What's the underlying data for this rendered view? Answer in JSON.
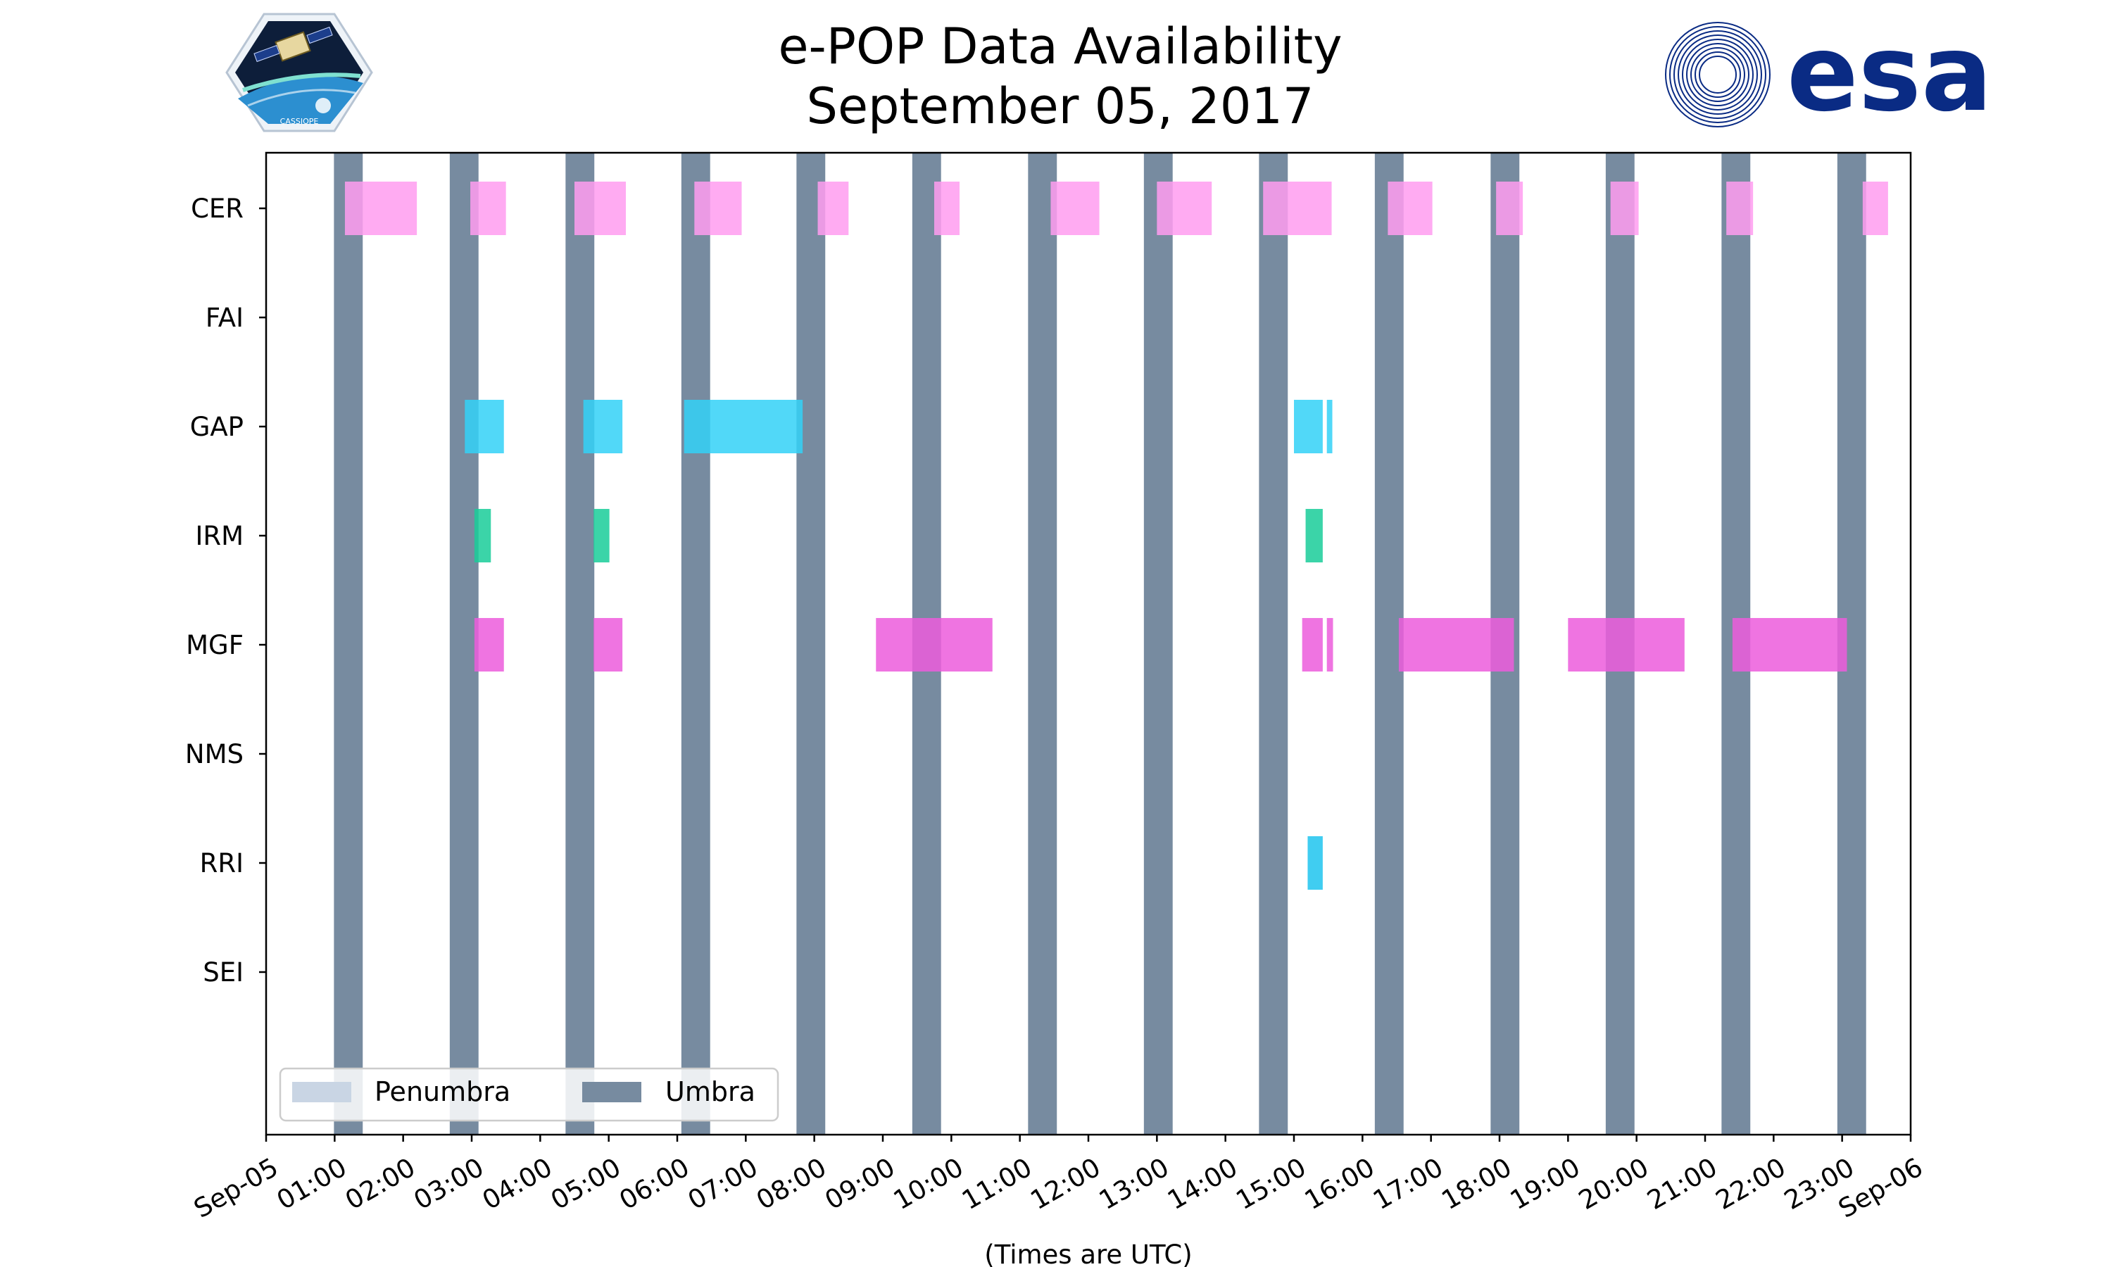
{
  "chart_data": {
    "type": "timeline",
    "title": [
      "e-POP Data Availability",
      "September 05, 2017"
    ],
    "xlabel": "(Times are UTC)",
    "x_range_hours": [
      0,
      24
    ],
    "x_ticks": [
      {
        "hour": 0,
        "label": "Sep-05"
      },
      {
        "hour": 1,
        "label": "01:00"
      },
      {
        "hour": 2,
        "label": "02:00"
      },
      {
        "hour": 3,
        "label": "03:00"
      },
      {
        "hour": 4,
        "label": "04:00"
      },
      {
        "hour": 5,
        "label": "05:00"
      },
      {
        "hour": 6,
        "label": "06:00"
      },
      {
        "hour": 7,
        "label": "07:00"
      },
      {
        "hour": 8,
        "label": "08:00"
      },
      {
        "hour": 9,
        "label": "09:00"
      },
      {
        "hour": 10,
        "label": "10:00"
      },
      {
        "hour": 11,
        "label": "11:00"
      },
      {
        "hour": 12,
        "label": "12:00"
      },
      {
        "hour": 13,
        "label": "13:00"
      },
      {
        "hour": 14,
        "label": "14:00"
      },
      {
        "hour": 15,
        "label": "15:00"
      },
      {
        "hour": 16,
        "label": "16:00"
      },
      {
        "hour": 17,
        "label": "17:00"
      },
      {
        "hour": 18,
        "label": "18:00"
      },
      {
        "hour": 19,
        "label": "19:00"
      },
      {
        "hour": 20,
        "label": "20:00"
      },
      {
        "hour": 21,
        "label": "21:00"
      },
      {
        "hour": 22,
        "label": "22:00"
      },
      {
        "hour": 23,
        "label": "23:00"
      },
      {
        "hour": 24,
        "label": "Sep-06"
      }
    ],
    "instruments": [
      "CER",
      "FAI",
      "GAP",
      "IRM",
      "MGF",
      "NMS",
      "RRI",
      "SEI"
    ],
    "umbra_intervals": [
      [
        0.99,
        1.41
      ],
      [
        2.68,
        3.1
      ],
      [
        4.37,
        4.79
      ],
      [
        6.06,
        6.48
      ],
      [
        7.74,
        8.16
      ],
      [
        9.43,
        9.85
      ],
      [
        11.12,
        11.54
      ],
      [
        12.81,
        13.23
      ],
      [
        14.49,
        14.91
      ],
      [
        16.18,
        16.6
      ],
      [
        17.87,
        18.29
      ],
      [
        19.55,
        19.97
      ],
      [
        21.24,
        21.66
      ],
      [
        22.93,
        23.35
      ]
    ],
    "series": [
      {
        "name": "CER",
        "color": "#ff9cf0",
        "intervals": [
          [
            1.15,
            2.2
          ],
          [
            2.98,
            3.5
          ],
          [
            4.5,
            5.25
          ],
          [
            6.25,
            6.94
          ],
          [
            8.05,
            8.5
          ],
          [
            9.75,
            10.12
          ],
          [
            11.45,
            12.16
          ],
          [
            13.0,
            13.8
          ],
          [
            14.55,
            15.55
          ],
          [
            16.37,
            17.02
          ],
          [
            17.95,
            18.34
          ],
          [
            19.62,
            20.03
          ],
          [
            21.31,
            21.7
          ],
          [
            23.3,
            23.67
          ]
        ]
      },
      {
        "name": "FAI",
        "color": "#ff9cf0",
        "intervals": []
      },
      {
        "name": "GAP",
        "color": "#33d1f7",
        "intervals": [
          [
            2.9,
            3.47
          ],
          [
            4.63,
            5.2
          ],
          [
            6.1,
            7.83
          ],
          [
            15.0,
            15.42
          ],
          [
            15.48,
            15.56
          ]
        ]
      },
      {
        "name": "IRM",
        "color": "#19cc99",
        "intervals": [
          [
            3.04,
            3.28
          ],
          [
            4.78,
            5.01
          ],
          [
            15.17,
            15.42
          ]
        ]
      },
      {
        "name": "MGF",
        "color": "#ec5cdc",
        "intervals": [
          [
            3.04,
            3.47
          ],
          [
            4.78,
            5.2
          ],
          [
            8.9,
            10.6
          ],
          [
            15.12,
            15.42
          ],
          [
            15.48,
            15.57
          ],
          [
            16.53,
            18.21
          ],
          [
            19.0,
            20.7
          ],
          [
            21.4,
            23.07
          ]
        ]
      },
      {
        "name": "NMS",
        "color": "#ff9cf0",
        "intervals": []
      },
      {
        "name": "RRI",
        "color": "#1ec4ee",
        "intervals": [
          [
            15.2,
            15.42
          ]
        ]
      },
      {
        "name": "SEI",
        "color": "#ff9cf0",
        "intervals": []
      }
    ],
    "legend": {
      "placement": "lower-left",
      "entries": [
        {
          "label": "Penumbra",
          "color": "#c9d5e4"
        },
        {
          "label": "Umbra",
          "color": "#778ba0"
        }
      ]
    }
  },
  "logos": {
    "left": {
      "name": "CASSIOPE mission patch",
      "text": "CASSIOPE"
    },
    "right": {
      "name": "ESA logo",
      "text": "esa",
      "color": "#0a2b84"
    }
  }
}
